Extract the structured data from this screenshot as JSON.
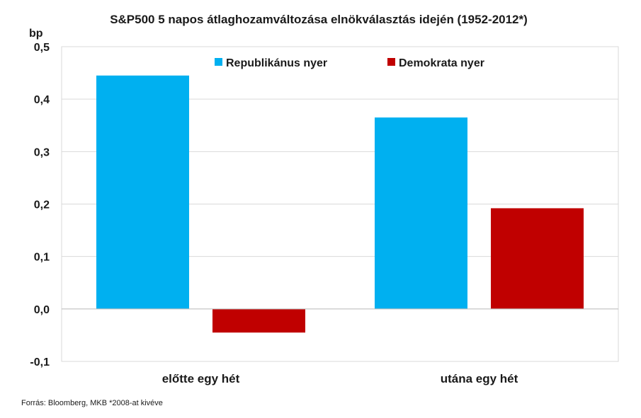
{
  "chart_data": {
    "type": "bar",
    "title": "S&P500 5 napos átlaghozamváltozása elnökválasztás idején (1952-2012*)",
    "ylabel": "bp",
    "xlabel": "",
    "categories": [
      "előtte egy hét",
      "utána egy hét"
    ],
    "series": [
      {
        "name": "Republikánus nyer",
        "color": "#00B0F0",
        "values": [
          0.445,
          0.365
        ]
      },
      {
        "name": "Demokrata nyer",
        "color": "#C00000",
        "values": [
          -0.045,
          0.192
        ]
      }
    ],
    "ylim": [
      -0.1,
      0.5
    ],
    "yticks": [
      -0.1,
      0.0,
      0.1,
      0.2,
      0.3,
      0.4,
      0.5
    ],
    "ytick_labels": [
      "-0,1",
      "0,0",
      "0,1",
      "0,2",
      "0,3",
      "0,4",
      "0,5"
    ],
    "grid": true,
    "legend_position": "top"
  },
  "source": "Forrás: Bloomberg, MKB *2008-at kivéve"
}
